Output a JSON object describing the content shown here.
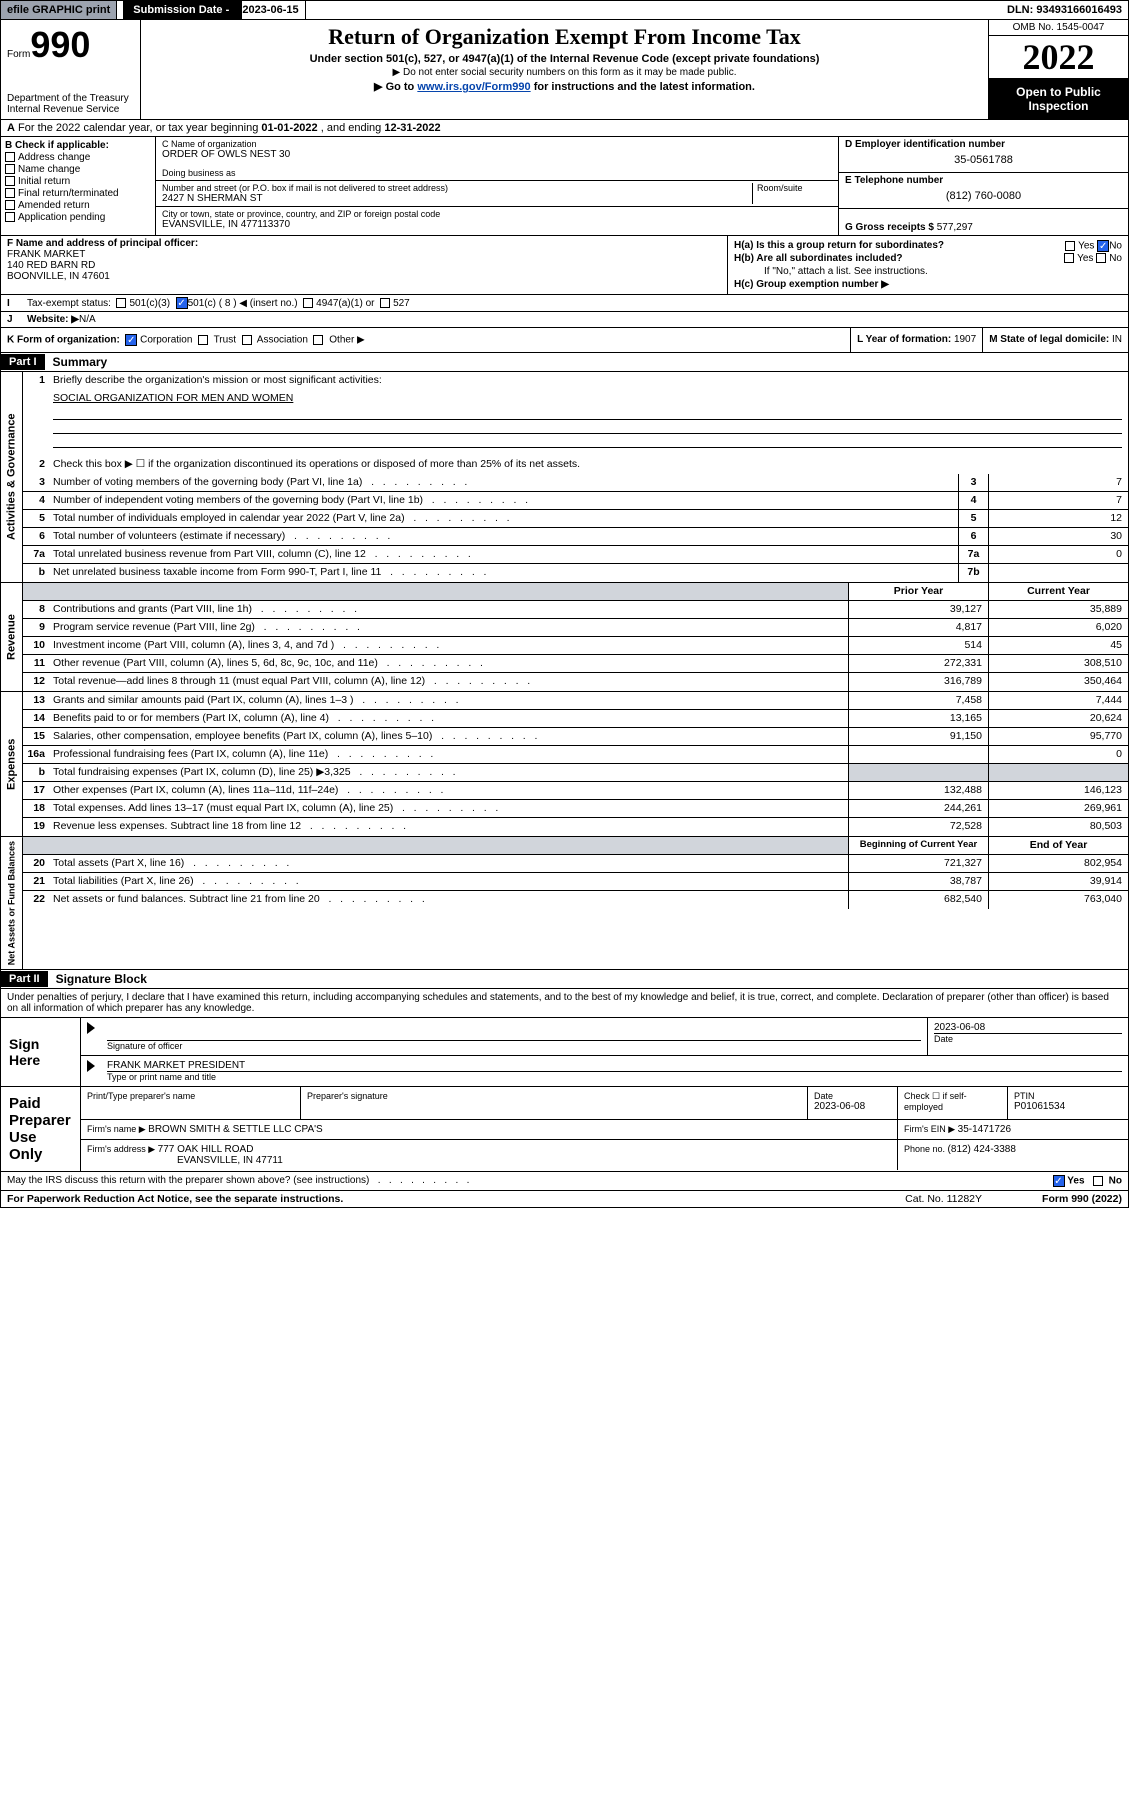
{
  "topbar": {
    "efile": "efile GRAPHIC print",
    "subdate_lbl": "Submission Date - ",
    "subdate": "2023-06-15",
    "dln_lbl": "DLN: ",
    "dln": "93493166016493"
  },
  "header": {
    "form_word": "Form",
    "form_num": "990",
    "dept": "Department of the Treasury\nInternal Revenue Service",
    "title": "Return of Organization Exempt From Income Tax",
    "subtitle": "Under section 501(c), 527, or 4947(a)(1) of the Internal Revenue Code (except private foundations)",
    "note1": "▶ Do not enter social security numbers on this form as it may be made public.",
    "note2_a": "▶ Go to ",
    "note2_link": "www.irs.gov/Form990",
    "note2_b": " for instructions and the latest information.",
    "omb": "OMB No. 1545-0047",
    "year": "2022",
    "open": "Open to Public Inspection"
  },
  "rowA": {
    "a": "A",
    "text_a": " For the 2022 calendar year, or tax year beginning ",
    "begin": "01-01-2022",
    "text_b": "   , and ending ",
    "end": "12-31-2022"
  },
  "colB": {
    "lbl": "B Check if applicable:",
    "items": [
      "Address change",
      "Name change",
      "Initial return",
      "Final return/terminated",
      "Amended return",
      "Application pending"
    ]
  },
  "colC": {
    "name_lbl": "C Name of organization",
    "name": "ORDER OF OWLS NEST 30",
    "dba_lbl": "Doing business as",
    "addr_lbl": "Number and street (or P.O. box if mail is not delivered to street address)",
    "room_lbl": "Room/suite",
    "addr": "2427 N SHERMAN ST",
    "city_lbl": "City or town, state or province, country, and ZIP or foreign postal code",
    "city": "EVANSVILLE, IN  477113370"
  },
  "colDE": {
    "d_lbl": "D Employer identification number",
    "d_val": "35-0561788",
    "e_lbl": "E Telephone number",
    "e_val": "(812) 760-0080",
    "g_lbl": "G Gross receipts $ ",
    "g_val": "577,297"
  },
  "rowF": {
    "lbl": "F Name and address of principal officer:",
    "name": "FRANK MARKET",
    "addr1": "140 RED BARN RD",
    "addr2": "BOONVILLE, IN  47601"
  },
  "rowH": {
    "ha": "H(a)  Is this a group return for subordinates?",
    "hb": "H(b)  Are all subordinates included?",
    "hb_note": "If \"No,\" attach a list. See instructions.",
    "hc": "H(c)  Group exemption number ▶",
    "yes": "Yes",
    "no": "No"
  },
  "rowI": {
    "lbl": "I",
    "text": "Tax-exempt status:",
    "opts": [
      "501(c)(3)",
      "501(c) ( 8 ) ◀ (insert no.)",
      "4947(a)(1) or",
      "527"
    ]
  },
  "rowJ": {
    "lbl": "J",
    "text": "Website: ▶",
    "val": " N/A"
  },
  "rowK": {
    "k": "K Form of organization:",
    "opts": [
      "Corporation",
      "Trust",
      "Association",
      "Other ▶"
    ],
    "l": "L Year of formation: ",
    "l_val": "1907",
    "m": "M State of legal domicile: ",
    "m_val": "IN"
  },
  "part1": {
    "hdr": "Part I",
    "title": "Summary"
  },
  "summary": {
    "q1": "Briefly describe the organization's mission or most significant activities:",
    "q1_ans": "SOCIAL ORGANIZATION FOR MEN AND WOMEN",
    "q2": "Check this box ▶ ☐  if the organization discontinued its operations or disposed of more than 25% of its net assets.",
    "lines": [
      {
        "n": "3",
        "d": "Number of voting members of the governing body (Part VI, line 1a)",
        "box": "3",
        "v": "7"
      },
      {
        "n": "4",
        "d": "Number of independent voting members of the governing body (Part VI, line 1b)",
        "box": "4",
        "v": "7"
      },
      {
        "n": "5",
        "d": "Total number of individuals employed in calendar year 2022 (Part V, line 2a)",
        "box": "5",
        "v": "12"
      },
      {
        "n": "6",
        "d": "Total number of volunteers (estimate if necessary)",
        "box": "6",
        "v": "30"
      },
      {
        "n": "7a",
        "d": "Total unrelated business revenue from Part VIII, column (C), line 12",
        "box": "7a",
        "v": "0"
      },
      {
        "n": "b",
        "d": "Net unrelated business taxable income from Form 990-T, Part I, line 11",
        "box": "7b",
        "v": ""
      }
    ],
    "col_prior": "Prior Year",
    "col_curr": "Current Year",
    "revenue": [
      {
        "n": "8",
        "d": "Contributions and grants (Part VIII, line 1h)",
        "p": "39,127",
        "c": "35,889"
      },
      {
        "n": "9",
        "d": "Program service revenue (Part VIII, line 2g)",
        "p": "4,817",
        "c": "6,020"
      },
      {
        "n": "10",
        "d": "Investment income (Part VIII, column (A), lines 3, 4, and 7d )",
        "p": "514",
        "c": "45"
      },
      {
        "n": "11",
        "d": "Other revenue (Part VIII, column (A), lines 5, 6d, 8c, 9c, 10c, and 11e)",
        "p": "272,331",
        "c": "308,510"
      },
      {
        "n": "12",
        "d": "Total revenue—add lines 8 through 11 (must equal Part VIII, column (A), line 12)",
        "p": "316,789",
        "c": "350,464"
      }
    ],
    "expenses": [
      {
        "n": "13",
        "d": "Grants and similar amounts paid (Part IX, column (A), lines 1–3 )",
        "p": "7,458",
        "c": "7,444"
      },
      {
        "n": "14",
        "d": "Benefits paid to or for members (Part IX, column (A), line 4)",
        "p": "13,165",
        "c": "20,624"
      },
      {
        "n": "15",
        "d": "Salaries, other compensation, employee benefits (Part IX, column (A), lines 5–10)",
        "p": "91,150",
        "c": "95,770"
      },
      {
        "n": "16a",
        "d": "Professional fundraising fees (Part IX, column (A), line 11e)",
        "p": "",
        "c": "0"
      },
      {
        "n": "b",
        "d": "Total fundraising expenses (Part IX, column (D), line 25) ▶3,325",
        "p": "shade",
        "c": "shade"
      },
      {
        "n": "17",
        "d": "Other expenses (Part IX, column (A), lines 11a–11d, 11f–24e)",
        "p": "132,488",
        "c": "146,123"
      },
      {
        "n": "18",
        "d": "Total expenses. Add lines 13–17 (must equal Part IX, column (A), line 25)",
        "p": "244,261",
        "c": "269,961"
      },
      {
        "n": "19",
        "d": "Revenue less expenses. Subtract line 18 from line 12",
        "p": "72,528",
        "c": "80,503"
      }
    ],
    "col_begin": "Beginning of Current Year",
    "col_end": "End of Year",
    "netassets": [
      {
        "n": "20",
        "d": "Total assets (Part X, line 16)",
        "p": "721,327",
        "c": "802,954"
      },
      {
        "n": "21",
        "d": "Total liabilities (Part X, line 26)",
        "p": "38,787",
        "c": "39,914"
      },
      {
        "n": "22",
        "d": "Net assets or fund balances. Subtract line 21 from line 20",
        "p": "682,540",
        "c": "763,040"
      }
    ]
  },
  "sidebars": {
    "ag": "Activities & Governance",
    "rev": "Revenue",
    "exp": "Expenses",
    "na": "Net Assets or Fund Balances"
  },
  "part2": {
    "hdr": "Part II",
    "title": "Signature Block"
  },
  "sig": {
    "decl": "Under penalties of perjury, I declare that I have examined this return, including accompanying schedules and statements, and to the best of my knowledge and belief, it is true, correct, and complete. Declaration of preparer (other than officer) is based on all information of which preparer has any knowledge.",
    "sign_here": "Sign Here",
    "sig_officer": "Signature of officer",
    "date_lbl": "Date",
    "date": "2023-06-08",
    "name": "FRANK MARKET PRESIDENT",
    "name_lbl": "Type or print name and title",
    "paid": "Paid Preparer Use Only",
    "prep_name_lbl": "Print/Type preparer's name",
    "prep_sig_lbl": "Preparer's signature",
    "prep_date": "2023-06-08",
    "check_lbl": "Check ☐ if self-employed",
    "ptin_lbl": "PTIN",
    "ptin": "P01061534",
    "firm_name_lbl": "Firm's name    ▶ ",
    "firm_name": "BROWN SMITH & SETTLE LLC CPA'S",
    "firm_ein_lbl": "Firm's EIN ▶ ",
    "firm_ein": "35-1471726",
    "firm_addr_lbl": "Firm's address ▶ ",
    "firm_addr1": "777 OAK HILL ROAD",
    "firm_addr2": "EVANSVILLE, IN  47711",
    "phone_lbl": "Phone no. ",
    "phone": "(812) 424-3388",
    "may_irs": "May the IRS discuss this return with the preparer shown above? (see instructions)",
    "yes": "Yes",
    "no": "No"
  },
  "footer": {
    "left": "For Paperwork Reduction Act Notice, see the separate instructions.",
    "mid": "Cat. No. 11282Y",
    "right": "Form 990 (2022)"
  }
}
